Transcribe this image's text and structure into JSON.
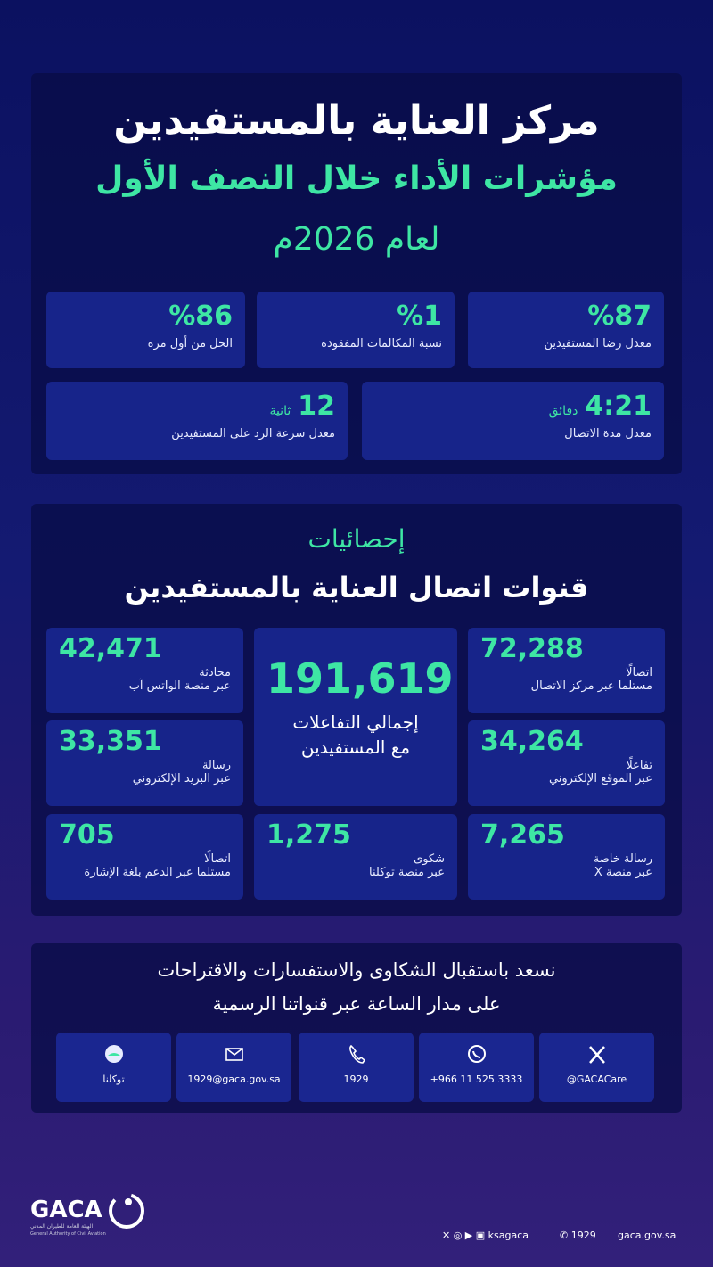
{
  "header": {
    "title": "مركز العناية بالمستفيدين",
    "subtitle": "مؤشرات الأداء خلال النصف الأول",
    "year": "لعام 2026م"
  },
  "kpis": [
    {
      "value": "%87",
      "label": "معدل رضا المستفيدين"
    },
    {
      "value": "%1",
      "label": "نسبة المكالمات المفقودة"
    },
    {
      "value": "%86",
      "label": "الحل من أول مرة"
    },
    {
      "value": "4:21",
      "unit": "دقائق",
      "label": "معدل مدة الاتصال"
    },
    {
      "value": "12",
      "unit": "ثانية",
      "label": "معدل سرعة الرد على المستفيدين"
    }
  ],
  "stats": {
    "kicker": "إحصائيات",
    "title": "قنوات اتصال العناية بالمستفيدين",
    "total": {
      "value": "191,619",
      "label": [
        "إجمالي التفاعلات",
        "مع المستفيدين"
      ]
    },
    "channels": [
      {
        "value": "72,288",
        "unit": "اتصالًا",
        "label": "مستلما عبر مركز الاتصال"
      },
      {
        "value": "42,471",
        "unit": "محادثة",
        "label": "عبر منصة الواتس آب"
      },
      {
        "value": "34,264",
        "unit": "تفاعلًا",
        "label": "عبر الموقع الإلكتروني"
      },
      {
        "value": "33,351",
        "unit": "رسالة",
        "label": "عبر البريد الإلكتروني"
      },
      {
        "value": "7,265",
        "unit": "رسالة خاصة",
        "label": "عبر منصة X"
      },
      {
        "value": "1,275",
        "unit": "شكوى",
        "label": "عبر منصة توكلنا"
      },
      {
        "value": "705",
        "unit": "اتصالًا",
        "label": "مستلما عبر الدعم بلغة الإشارة"
      }
    ]
  },
  "contact": {
    "lines": [
      "نسعد باستقبال الشكاوى والاستفسارات والاقتراحات",
      "على مدار الساعة عبر قنواتنا الرسمية"
    ],
    "channels": [
      "@GACACare",
      "+966 11 525 3333",
      "1929",
      "1929@gaca.gov.sa",
      "توكلنا"
    ]
  },
  "footer": {
    "logo": "GACA",
    "logo_ar": "الهيئة العامة للطيران المدني",
    "logo_en": "General Authority of Civil Aviation",
    "social": "ksagaca",
    "phone": "1929",
    "website": "gaca.gov.sa"
  }
}
